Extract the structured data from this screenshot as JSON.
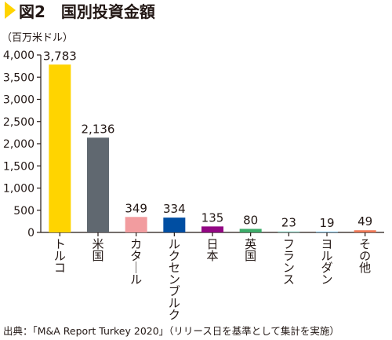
{
  "figure": {
    "title": "図2　国別投資金額",
    "source": "出典：「M&A Report Turkey 2020」（リリース日を基準として集計を実施）"
  },
  "chart_data": {
    "type": "bar",
    "unit": "（百万米ドル）",
    "categories": [
      "トルコ",
      "米国",
      "カタール",
      "ルクセンブルク",
      "日本",
      "英国",
      "フランス",
      "ヨルダン",
      "その他"
    ],
    "values": [
      3783,
      2136,
      349,
      334,
      135,
      80,
      23,
      19,
      49
    ],
    "value_labels": [
      "3,783",
      "2,136",
      "349",
      "334",
      "135",
      "80",
      "23",
      "19",
      "49"
    ],
    "bar_colors": [
      "#ffd400",
      "#606870",
      "#f29c9f",
      "#004ea2",
      "#920783",
      "#3dac6a",
      "#8fd1c4",
      "#7ec5e8",
      "#ee7857"
    ],
    "ylim": [
      0,
      4000
    ],
    "yticks": [
      0,
      500,
      1000,
      1500,
      2000,
      2500,
      3000,
      3500,
      4000
    ],
    "ytick_labels": [
      "0",
      "500",
      "1,000",
      "1,500",
      "2,000",
      "2,500",
      "3,000",
      "3,500",
      "4,000"
    ],
    "grid": false,
    "legend": "none"
  },
  "colors": {
    "title_marker": "#ffd400",
    "axis": "#231815"
  }
}
